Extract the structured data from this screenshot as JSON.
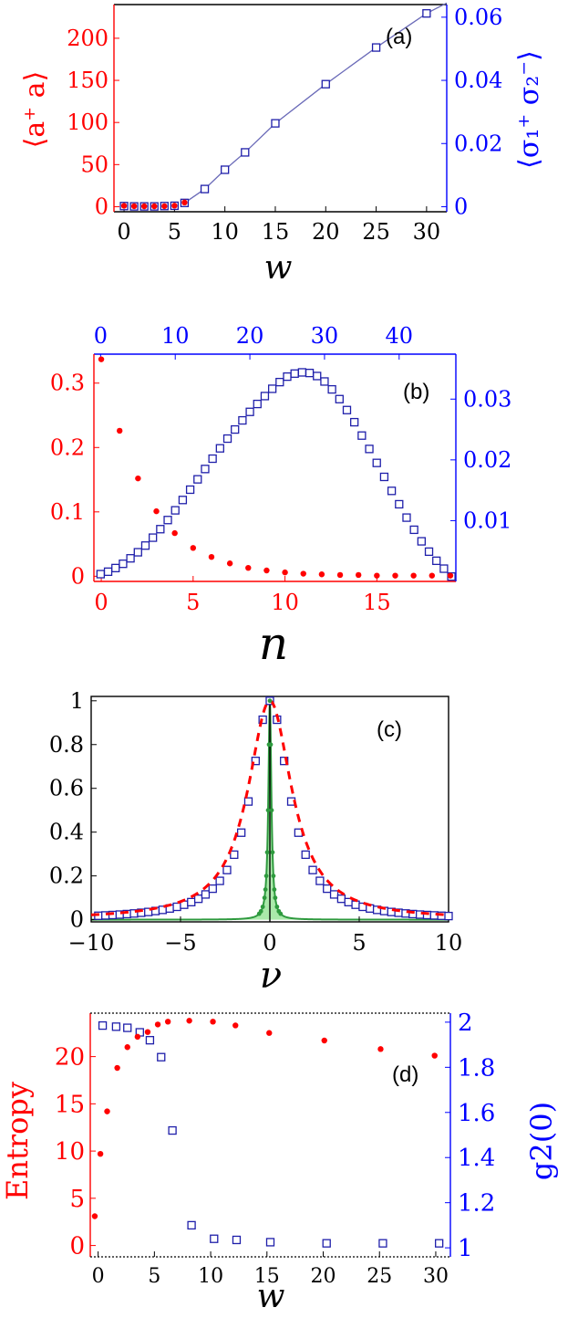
{
  "colors": {
    "left_axis": "#ff0000",
    "right_axis": "#0000ff",
    "frame": "#000000",
    "red_marker": "#ff0000",
    "blue_marker": "#1f1faa",
    "fit_line": "#6a6ab8",
    "green_line": "#2e9a3e",
    "green_fill": "#9be59b"
  },
  "chart_data": [
    {
      "id": "a",
      "type": "scatter",
      "tag": "(a)",
      "xlabel": "w",
      "ylabel_left": "⟨a⁺ a⟩",
      "ylabel_right": "⟨σ₁⁺ σ₂⁻⟩",
      "xlim": [
        -1,
        32
      ],
      "ylim_left": [
        -6,
        240
      ],
      "ylim_right": [
        -0.0016,
        0.064
      ],
      "x_ticks": [
        0,
        5,
        10,
        15,
        20,
        25,
        30
      ],
      "x_tick_labels": [
        "0",
        "5",
        "10",
        "15",
        "20",
        "25",
        "30"
      ],
      "y_ticks_left": [
        0,
        50,
        100,
        150,
        200
      ],
      "y_tick_labels_left": [
        "0",
        "50",
        "100",
        "150",
        "200"
      ],
      "y_ticks_right": [
        0,
        0.02,
        0.04,
        0.06
      ],
      "y_tick_labels_right": [
        "0",
        "0.02",
        "0.04",
        "0.06"
      ],
      "series": [
        {
          "axis": "left",
          "marker": "dot",
          "x": [
            0,
            1,
            2,
            3,
            4,
            5,
            6
          ],
          "y": [
            1,
            0.6,
            0.5,
            0.5,
            0.6,
            1.2,
            5
          ]
        },
        {
          "axis": "right",
          "marker": "square",
          "x": [
            0,
            1,
            2,
            3,
            4,
            5,
            6,
            8,
            10,
            12,
            15,
            20,
            25,
            30
          ],
          "y": [
            0.0002,
            0.0001,
            0.0001,
            0.0001,
            0.0002,
            0.0003,
            0.0012,
            0.0056,
            0.0117,
            0.0172,
            0.0264,
            0.0388,
            0.0504,
            0.0612
          ]
        },
        {
          "axis": "right",
          "marker": "line",
          "x": [
            6,
            8,
            10,
            12,
            15,
            20,
            25,
            30,
            32
          ],
          "y": [
            0.0012,
            0.0056,
            0.0117,
            0.0172,
            0.0264,
            0.0388,
            0.0504,
            0.0612,
            0.0645
          ]
        }
      ]
    },
    {
      "id": "b",
      "type": "scatter",
      "tag": "(b)",
      "xlabel": "n",
      "xlim": [
        -0.4,
        19.3
      ],
      "x2lim": [
        -0.9,
        47.6
      ],
      "ylim_left": [
        -0.008,
        0.345
      ],
      "ylim_right": [
        0,
        0.0374
      ],
      "x_ticks": [
        0,
        5,
        10,
        15
      ],
      "x_tick_labels": [
        "0",
        "5",
        "10",
        "15"
      ],
      "x2_ticks": [
        0,
        10,
        20,
        30,
        40
      ],
      "x2_tick_labels": [
        "0",
        "10",
        "20",
        "30",
        "40"
      ],
      "y_ticks_left": [
        0,
        0.1,
        0.2,
        0.3
      ],
      "y_tick_labels_left": [
        "0",
        "0.1",
        "0.2",
        "0.3"
      ],
      "y_ticks_right": [
        0.01,
        0.02,
        0.03
      ],
      "y_tick_labels_right": [
        "0.01",
        "0.02",
        "0.03"
      ],
      "series": [
        {
          "axis": "left",
          "marker": "dot",
          "x": [
            0,
            1,
            2,
            3,
            4,
            5,
            6,
            7,
            8,
            9,
            10,
            11,
            12,
            13,
            14,
            15,
            16,
            17,
            18,
            19
          ],
          "y": [
            0.337,
            0.226,
            0.152,
            0.101,
            0.067,
            0.044,
            0.03,
            0.02,
            0.013,
            0.009,
            0.006,
            0.004,
            0.003,
            0.002,
            0.002,
            0.001,
            0.001,
            0.001,
            0.001,
            0.001
          ]
        },
        {
          "axis": "right",
          "marker": "square",
          "x2": [
            0,
            1,
            2,
            3,
            4,
            5,
            6,
            7,
            8,
            9,
            10,
            11,
            12,
            13,
            14,
            15,
            16,
            17,
            18,
            19,
            20,
            21,
            22,
            23,
            24,
            25,
            26,
            27,
            28,
            29,
            30,
            31,
            32,
            33,
            34,
            35,
            36,
            37,
            38,
            39,
            40,
            41,
            42,
            43,
            44,
            45,
            46,
            47
          ],
          "y": [
            0.0012,
            0.0016,
            0.0022,
            0.0029,
            0.0038,
            0.0048,
            0.0059,
            0.0072,
            0.0086,
            0.0101,
            0.0117,
            0.0134,
            0.0151,
            0.0168,
            0.0185,
            0.0202,
            0.0219,
            0.0235,
            0.025,
            0.0265,
            0.0279,
            0.0292,
            0.0305,
            0.0317,
            0.0328,
            0.0337,
            0.0342,
            0.0344,
            0.0343,
            0.0338,
            0.0329,
            0.0316,
            0.03,
            0.0282,
            0.0262,
            0.024,
            0.0218,
            0.0195,
            0.0172,
            0.0149,
            0.0127,
            0.0105,
            0.0085,
            0.0066,
            0.0049,
            0.0034,
            0.0021,
            0.0008
          ]
        }
      ]
    },
    {
      "id": "c",
      "type": "line",
      "tag": "(c)",
      "xlabel": "ν",
      "xlim": [
        -10,
        10
      ],
      "ylim": [
        -0.01,
        1.02
      ],
      "x_ticks": [
        -10,
        -5,
        0,
        5,
        10
      ],
      "x_tick_labels": [
        "−10",
        "−5",
        "0",
        "5",
        "10"
      ],
      "y_ticks": [
        0,
        0.2,
        0.4,
        0.6,
        0.8,
        1
      ],
      "y_tick_labels": [
        "0",
        "0.2",
        "0.4",
        "0.6",
        "0.8",
        "1"
      ],
      "series": [
        {
          "marker": "square",
          "lorentz_halfwidth": 1.3,
          "x": [
            -9.6,
            -9.2,
            -8.8,
            -8.4,
            -8.0,
            -7.6,
            -7.2,
            -6.8,
            -6.4,
            -6.0,
            -5.6,
            -5.2,
            -4.8,
            -4.4,
            -4.0,
            -3.6,
            -3.2,
            -2.8,
            -2.4,
            -2.0,
            -1.6,
            -1.2,
            -0.8,
            -0.4,
            0.0,
            0.4,
            0.8,
            1.2,
            1.6,
            2.0,
            2.4,
            2.8,
            3.2,
            3.6,
            4.0,
            4.4,
            4.8,
            5.2,
            5.6,
            6.0,
            6.4,
            6.8,
            7.2,
            7.6,
            8.0,
            8.4,
            8.8,
            9.2,
            9.6,
            10.0
          ]
        },
        {
          "marker": "dashed",
          "lorentz_halfwidth": 1.5
        },
        {
          "marker": "line",
          "lorentz_halfwidth": 0.1
        },
        {
          "marker": "dot",
          "lorentz_halfwidth": 0.1,
          "x": [
            -0.6,
            -0.5,
            -0.4,
            -0.3,
            -0.25,
            -0.2,
            -0.15,
            -0.1,
            -0.05,
            0,
            0.05,
            0.1,
            0.15,
            0.2,
            0.25,
            0.3,
            0.4,
            0.5,
            0.6
          ]
        }
      ]
    },
    {
      "id": "d",
      "type": "scatter",
      "tag": "(d)",
      "xlabel": "w",
      "ylabel_left": "Entropy",
      "ylabel_right": "g2(0)",
      "xlim": [
        -0.7,
        31.3
      ],
      "ylim_left": [
        -1.2,
        24.6
      ],
      "ylim_right": [
        0.96,
        2.04
      ],
      "x_ticks": [
        0,
        5,
        10,
        15,
        20,
        25,
        30
      ],
      "x_tick_labels": [
        "0",
        "5",
        "10",
        "15",
        "20",
        "25",
        "30"
      ],
      "y_ticks_left": [
        0,
        5,
        10,
        15,
        20
      ],
      "y_tick_labels_left": [
        "0",
        "5",
        "10",
        "15",
        "20"
      ],
      "y_ticks_right": [
        1,
        1.2,
        1.4,
        1.6,
        1.8,
        2
      ],
      "y_tick_labels_right": [
        "1",
        "1.2",
        "1.4",
        "1.6",
        "1.8",
        "2"
      ],
      "series": [
        {
          "axis": "left",
          "marker": "dot",
          "x": [
            -0.3,
            0.2,
            0.8,
            1.7,
            2.6,
            3.5,
            4.4,
            5.3,
            6.2,
            8.1,
            10.2,
            12.2,
            15.2,
            20.1,
            25.1,
            29.9
          ],
          "y": [
            3.1,
            9.7,
            14.2,
            18.8,
            21.0,
            22.1,
            22.6,
            23.4,
            23.7,
            23.8,
            23.7,
            23.3,
            22.5,
            21.7,
            20.8,
            20.1
          ]
        },
        {
          "axis": "right",
          "marker": "square",
          "x": [
            0.4,
            1.6,
            2.6,
            3.7,
            4.6,
            5.6,
            6.6,
            8.3,
            10.3,
            12.3,
            15.3,
            20.3,
            25.3,
            30.3
          ],
          "y": [
            1.985,
            1.98,
            1.975,
            1.955,
            1.92,
            1.845,
            1.52,
            1.1,
            1.04,
            1.035,
            1.025,
            1.02,
            1.02,
            1.02
          ]
        }
      ]
    }
  ]
}
